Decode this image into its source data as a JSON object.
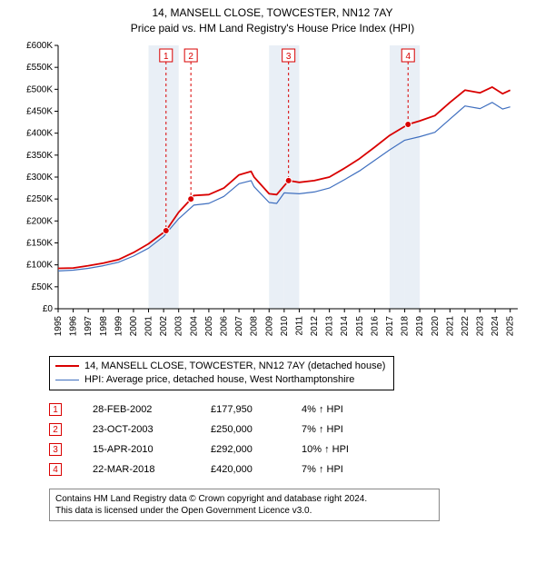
{
  "title": "14, MANSELL CLOSE, TOWCESTER, NN12 7AY",
  "subtitle": "Price paid vs. HM Land Registry's House Price Index (HPI)",
  "chart": {
    "type": "line",
    "background_color": "#ffffff",
    "band_color": "#e9eff6",
    "grid_color": "#ffffff",
    "xlim": [
      1995,
      2025.5
    ],
    "ylim": [
      0,
      600
    ],
    "ytick_step": 50,
    "yticks": [
      "£0",
      "£50K",
      "£100K",
      "£150K",
      "£200K",
      "£250K",
      "£300K",
      "£350K",
      "£400K",
      "£450K",
      "£500K",
      "£550K",
      "£600K"
    ],
    "xticks": [
      "1995",
      "1996",
      "1997",
      "1998",
      "1999",
      "2000",
      "2001",
      "2002",
      "2003",
      "2004",
      "2005",
      "2006",
      "2007",
      "2008",
      "2009",
      "2010",
      "2011",
      "2012",
      "2013",
      "2014",
      "2015",
      "2016",
      "2017",
      "2018",
      "2019",
      "2020",
      "2021",
      "2022",
      "2023",
      "2024",
      "2025"
    ],
    "band_years": [
      2001,
      2002,
      2009,
      2010,
      2017,
      2018
    ],
    "series": [
      {
        "name": "property",
        "label": "14, MANSELL CLOSE, TOWCESTER, NN12 7AY (detached house)",
        "color": "#d90000",
        "line_width": 1.8,
        "data": [
          [
            1995,
            92
          ],
          [
            1996,
            93
          ],
          [
            1997,
            98
          ],
          [
            1998,
            104
          ],
          [
            1999,
            112
          ],
          [
            2000,
            128
          ],
          [
            2001,
            148
          ],
          [
            2002.16,
            178
          ],
          [
            2003,
            220
          ],
          [
            2003.81,
            250
          ],
          [
            2004,
            258
          ],
          [
            2005,
            260
          ],
          [
            2006,
            275
          ],
          [
            2007,
            305
          ],
          [
            2007.8,
            313
          ],
          [
            2008,
            300
          ],
          [
            2009,
            262
          ],
          [
            2009.5,
            260
          ],
          [
            2010.29,
            292
          ],
          [
            2011,
            288
          ],
          [
            2012,
            292
          ],
          [
            2013,
            300
          ],
          [
            2014,
            320
          ],
          [
            2015,
            342
          ],
          [
            2016,
            368
          ],
          [
            2017,
            395
          ],
          [
            2018.22,
            420
          ],
          [
            2019,
            428
          ],
          [
            2020,
            440
          ],
          [
            2021,
            470
          ],
          [
            2022,
            498
          ],
          [
            2023,
            492
          ],
          [
            2023.8,
            505
          ],
          [
            2024.5,
            490
          ],
          [
            2025,
            498
          ]
        ]
      },
      {
        "name": "hpi",
        "label": "HPI: Average price, detached house, West Northamptonshire",
        "color": "#3f6fbf",
        "line_width": 1.2,
        "data": [
          [
            1995,
            86
          ],
          [
            1996,
            88
          ],
          [
            1997,
            92
          ],
          [
            1998,
            98
          ],
          [
            1999,
            106
          ],
          [
            2000,
            120
          ],
          [
            2001,
            138
          ],
          [
            2002,
            165
          ],
          [
            2003,
            205
          ],
          [
            2004,
            236
          ],
          [
            2005,
            240
          ],
          [
            2006,
            256
          ],
          [
            2007,
            285
          ],
          [
            2007.8,
            292
          ],
          [
            2008,
            278
          ],
          [
            2009,
            242
          ],
          [
            2009.5,
            240
          ],
          [
            2010,
            264
          ],
          [
            2011,
            262
          ],
          [
            2012,
            266
          ],
          [
            2013,
            275
          ],
          [
            2014,
            294
          ],
          [
            2015,
            314
          ],
          [
            2016,
            338
          ],
          [
            2017,
            362
          ],
          [
            2018,
            384
          ],
          [
            2019,
            392
          ],
          [
            2020,
            402
          ],
          [
            2021,
            432
          ],
          [
            2022,
            462
          ],
          [
            2023,
            456
          ],
          [
            2023.8,
            470
          ],
          [
            2024.5,
            455
          ],
          [
            2025,
            460
          ]
        ]
      }
    ],
    "markers": [
      {
        "n": "1",
        "year": 2002.16,
        "value": 178,
        "color": "#d90000"
      },
      {
        "n": "2",
        "year": 2003.81,
        "value": 250,
        "color": "#d90000"
      },
      {
        "n": "3",
        "year": 2010.29,
        "value": 292,
        "color": "#d90000"
      },
      {
        "n": "4",
        "year": 2018.22,
        "value": 420,
        "color": "#d90000"
      }
    ]
  },
  "transactions": [
    {
      "n": "1",
      "date": "28-FEB-2002",
      "price": "£177,950",
      "diff": "4% ↑ HPI",
      "color": "#d90000"
    },
    {
      "n": "2",
      "date": "23-OCT-2003",
      "price": "£250,000",
      "diff": "7% ↑ HPI",
      "color": "#d90000"
    },
    {
      "n": "3",
      "date": "15-APR-2010",
      "price": "£292,000",
      "diff": "10% ↑ HPI",
      "color": "#d90000"
    },
    {
      "n": "4",
      "date": "22-MAR-2018",
      "price": "£420,000",
      "diff": "7% ↑ HPI",
      "color": "#d90000"
    }
  ],
  "footer": {
    "line1": "Contains HM Land Registry data © Crown copyright and database right 2024.",
    "line2": "This data is licensed under the Open Government Licence v3.0."
  }
}
